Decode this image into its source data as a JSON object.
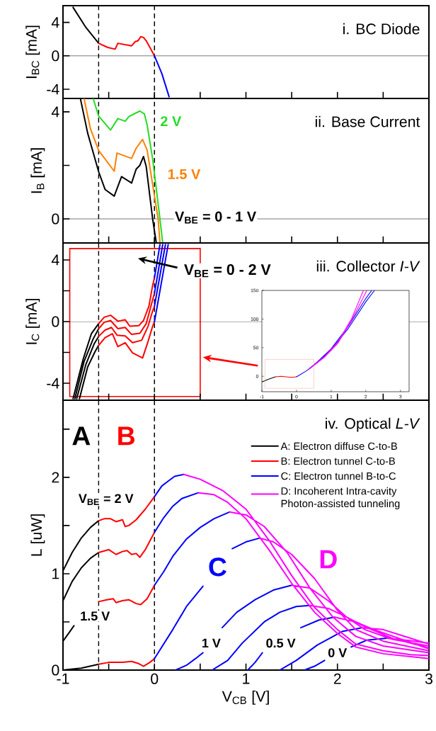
{
  "chart_data": [
    {
      "type": "line",
      "title": "i. BC Diode",
      "ylabel": "I$_{BC}$ [mA]",
      "xlim": [
        -1,
        3
      ],
      "ylim": [
        -5.1,
        6
      ],
      "xticks": [
        -1,
        {
          "value": -0.5,
          "label": null
        },
        0,
        {
          "value": 0.5,
          "label": null
        },
        1,
        {
          "value": 1.5,
          "label": null
        },
        2,
        {
          "value": 2.5,
          "label": null
        },
        3
      ],
      "yticks": [
        -4,
        0,
        4
      ],
      "tick_labels": "y",
      "ref_lines": [
        {
          "axis": "y",
          "value": 0
        },
        {
          "axis": "x",
          "value": -0.61,
          "line_style": "dashed"
        },
        {
          "axis": "x",
          "value": 0,
          "line_style": "dashed"
        }
      ],
      "series": [
        {
          "color": "#000000",
          "x": [
            -0.89,
            -0.75,
            -0.61
          ],
          "values": [
            5.8,
            3.4,
            1.5
          ]
        },
        {
          "color": "#ff0000",
          "x": [
            -0.61,
            -0.51,
            -0.43,
            -0.4,
            -0.25,
            -0.21,
            -0.18,
            -0.15,
            -0.12,
            -0.09,
            0
          ],
          "values": [
            1.5,
            1.0,
            0.8,
            1.5,
            1.2,
            1.7,
            1.8,
            2.3,
            2.2,
            1.8,
            0
          ]
        },
        {
          "color": "#0000ff",
          "x": [
            0,
            0.08,
            0.16
          ],
          "values": [
            0,
            -2.1,
            -4.9
          ]
        }
      ]
    },
    {
      "type": "line",
      "title": "ii. Base Current",
      "ylabel": "I$_{B}$ [mA]",
      "xlim": [
        -1,
        3
      ],
      "ylim": [
        -0.9,
        4.5
      ],
      "xticks": [
        -1,
        {
          "value": -0.5,
          "label": null
        },
        0,
        {
          "value": 0.5,
          "label": null
        },
        1,
        {
          "value": 1.5,
          "label": null
        },
        2,
        {
          "value": 2.5,
          "label": null
        },
        3
      ],
      "yticks": [
        0,
        {
          "value": 2,
          "label": null
        },
        4
      ],
      "tick_labels": "y",
      "ref_lines": [
        {
          "axis": "y",
          "value": 0
        },
        {
          "axis": "x",
          "value": -0.61,
          "line_style": "dashed"
        },
        {
          "axis": "x",
          "value": 0,
          "line_style": "dashed"
        }
      ],
      "series": [
        {
          "name": "2 V",
          "color": "#22dd22",
          "x": [
            -0.67,
            -0.61,
            -0.48,
            -0.4,
            -0.32,
            -0.28,
            -0.16,
            -0.11,
            -0.08,
            -0.02,
            0.06,
            0.09
          ],
          "values": [
            4.5,
            3.84,
            3.32,
            3.75,
            3.65,
            3.82,
            4.03,
            3.92,
            3.51,
            2.24,
            0,
            -0.9
          ]
        },
        {
          "name": "1.5 V",
          "color": "#ff8000",
          "x": [
            -0.77,
            -0.7,
            -0.61,
            -0.44,
            -0.41,
            -0.25,
            -0.2,
            -0.13,
            -0.08,
            0.04,
            0.06
          ],
          "values": [
            4.5,
            3.37,
            2.56,
            1.78,
            2.46,
            2.26,
            2.64,
            2.97,
            2.57,
            0,
            -0.9
          ]
        },
        {
          "name": "V$_{BE}$ = 0 - 1 V",
          "color": "#000000",
          "x": [
            -0.81,
            -0.73,
            -0.61,
            -0.54,
            -0.44,
            -0.36,
            -0.25,
            -0.2,
            -0.16,
            -0.12,
            -0.09,
            -0.02,
            0.02
          ],
          "values": [
            4.5,
            3.2,
            1.76,
            1.1,
            0.85,
            1.58,
            1.34,
            1.86,
            2.0,
            2.33,
            1.95,
            0,
            -0.9
          ]
        }
      ]
    },
    {
      "type": "line",
      "title": "iii. Collector *I-V*",
      "ylabel": "I$_{C}$ [mA]",
      "xlim": [
        -1,
        3
      ],
      "ylim": [
        -5.1,
        5.1
      ],
      "xticks": [
        -1,
        {
          "value": -0.5,
          "label": null
        },
        0,
        {
          "value": 0.5,
          "label": null
        },
        1,
        {
          "value": 1.5,
          "label": null
        },
        2,
        {
          "value": 2.5,
          "label": null
        },
        3
      ],
      "yticks": [
        -4,
        {
          "value": -2,
          "label": null
        },
        0,
        {
          "value": 2,
          "label": null
        },
        4
      ],
      "tick_labels": "y",
      "ref_lines": [
        {
          "axis": "y",
          "value": 0
        },
        {
          "axis": "x",
          "value": -0.61,
          "line_style": "dashed"
        },
        {
          "axis": "x",
          "value": 0,
          "line_style": "dashed"
        }
      ],
      "annotations": [
        "V$_{BE}$ = 0 - 2 V"
      ],
      "series": [
        {
          "color": "#000000",
          "x": [
            -0.89,
            -0.78,
            -0.69,
            -0.61,
            null,
            -0.87,
            -0.77,
            -0.67,
            -0.61,
            null,
            -0.85,
            -0.75,
            -0.66,
            -0.61,
            null,
            -0.82,
            -0.73,
            -0.65,
            -0.61
          ],
          "values": [
            -5.0,
            -2.45,
            -0.79,
            -0.13,
            null,
            -5.0,
            -2.6,
            -1.12,
            -0.46,
            null,
            -5.0,
            -2.78,
            -1.45,
            -0.96,
            null,
            -5.0,
            -2.94,
            -1.95,
            -1.54
          ]
        },
        {
          "color": "#ff0000",
          "x": [
            -0.61,
            -0.55,
            -0.48,
            -0.4,
            -0.32,
            -0.27,
            -0.17,
            -0.12,
            -0.06,
            -0.02,
            0,
            null,
            -0.61,
            -0.55,
            -0.48,
            -0.4,
            -0.32,
            -0.25,
            -0.16,
            -0.09,
            -0.03,
            0,
            null,
            -0.61,
            -0.54,
            -0.47,
            -0.41,
            -0.32,
            -0.24,
            -0.14,
            -0.07,
            -0.02,
            0,
            null,
            -0.61,
            -0.54,
            -0.46,
            -0.4,
            -0.32,
            -0.24,
            -0.13,
            -0.07,
            -0.02,
            0
          ],
          "values": [
            -0.13,
            0.28,
            0.41,
            0.03,
            0.12,
            -0.3,
            -0.26,
            0.07,
            1.02,
            2.35,
            2.84,
            null,
            -0.46,
            -0.05,
            0.07,
            -0.46,
            -0.38,
            -0.83,
            -0.76,
            -0.13,
            1.19,
            1.85,
            null,
            -0.96,
            -0.55,
            -0.38,
            -0.88,
            -0.93,
            -1.37,
            -1.21,
            -0.3,
            0.69,
            1.0,
            null,
            -1.54,
            -1.04,
            -0.79,
            -1.62,
            -1.37,
            -2.03,
            -2.36,
            -1.29,
            -0.3,
            0
          ]
        },
        {
          "color": "#0000ff",
          "x": [
            0,
            0.03,
            0.06,
            null,
            0,
            0.045,
            0.09,
            null,
            0,
            0.06,
            0.12,
            null,
            0,
            0.075,
            0.15
          ],
          "values": [
            2.84,
            3.9,
            5.0,
            null,
            1.85,
            3.4,
            5.0,
            null,
            1.0,
            3.0,
            5.0,
            null,
            0,
            2.5,
            5.0
          ]
        }
      ]
    },
    {
      "type": "line",
      "xlim": [
        -1,
        3.25
      ],
      "ylim": [
        -27,
        150
      ],
      "xticks": [
        -1,
        0,
        1,
        2,
        3
      ],
      "yticks": [
        0,
        50,
        100,
        150
      ],
      "series": [
        {
          "color": "#000000",
          "x": [
            -1,
            -0.8,
            -0.61
          ],
          "values": [
            -10,
            -5,
            -1
          ]
        },
        {
          "color": "#ff0000",
          "x": [
            -0.61,
            -0.45,
            -0.3,
            -0.15,
            0
          ],
          "values": [
            -1,
            0,
            -1,
            -2,
            -1
          ]
        },
        {
          "color": "#0000ff",
          "x": [
            0,
            0.3,
            0.6,
            1.0,
            1.5,
            2.0,
            2.25,
            null,
            0,
            0.3,
            0.6,
            1.0,
            1.5,
            2.0,
            2.17
          ],
          "values": [
            -1,
            10,
            24,
            46,
            84,
            130,
            150,
            null,
            -1,
            10,
            25,
            48,
            88,
            136,
            150
          ]
        },
        {
          "color": "#ff00ff",
          "x": [
            0.35,
            0.8,
            1.2,
            1.6,
            1.93,
            null,
            0.4,
            0.8,
            1.2,
            1.6,
            2.03
          ],
          "values": [
            12,
            34,
            60,
            102,
            150,
            null,
            14,
            33,
            58,
            99,
            150
          ]
        }
      ]
    },
    {
      "type": "line",
      "title": "iv. Optical *L-V*",
      "xlabel": "V$_{CB}$ [V]",
      "ylabel": "L [uW]",
      "xlim": [
        -1,
        3
      ],
      "ylim": [
        0,
        2.8
      ],
      "xticks": [
        -1,
        {
          "value": -0.5,
          "label": null
        },
        0,
        {
          "value": 0.5,
          "label": null
        },
        1,
        {
          "value": 1.5,
          "label": null
        },
        2,
        {
          "value": 2.5,
          "label": null
        },
        3
      ],
      "yticks": [
        0,
        {
          "value": 0.5,
          "label": null
        },
        1,
        {
          "value": 1.5,
          "label": null
        },
        2,
        {
          "value": 2.5,
          "label": null
        }
      ],
      "legend": "top right",
      "ref_lines": [
        {
          "axis": "x",
          "value": -0.61,
          "line_style": "dashed"
        },
        {
          "axis": "x",
          "value": 0,
          "line_style": "dashed"
        }
      ],
      "annotations": [
        "A",
        "B",
        "C",
        "D",
        "V$_{BE}$ = 2 V",
        "1.5 V",
        "1 V",
        "0.5 V",
        "0 V"
      ],
      "series": [
        {
          "name": "A: Electron diffuse C-to-B",
          "color": "#000000",
          "x": [
            -1,
            -0.9,
            -0.8,
            -0.7,
            -0.61,
            null,
            -1,
            -0.9,
            -0.8,
            -0.7,
            -0.61,
            null,
            -1,
            -0.94,
            -0.88,
            null,
            -1,
            -0.8,
            -0.61
          ],
          "values": [
            1.03,
            1.22,
            1.37,
            1.48,
            1.55,
            null,
            0.72,
            0.92,
            1.06,
            1.16,
            1.22,
            null,
            0.3,
            0.38,
            0.46,
            null,
            0,
            0.02,
            0.06
          ]
        },
        {
          "name": "B: Electron tunnel C-to-B",
          "color": "#ff0000",
          "x": [
            -0.61,
            -0.55,
            -0.48,
            -0.42,
            -0.35,
            -0.32,
            -0.28,
            -0.2,
            -0.1,
            0,
            null,
            -0.61,
            -0.5,
            -0.42,
            -0.35,
            -0.3,
            -0.25,
            -0.2,
            -0.16,
            -0.1,
            0,
            null,
            -0.61,
            -0.52,
            -0.45,
            -0.42,
            -0.35,
            -0.28,
            -0.2,
            -0.15,
            -0.08,
            0,
            null,
            -0.61,
            -0.5,
            -0.35,
            -0.25,
            -0.18,
            -0.12,
            -0.05,
            0
          ],
          "values": [
            1.55,
            1.57,
            1.57,
            1.54,
            1.56,
            1.49,
            1.5,
            1.56,
            1.67,
            1.8,
            null,
            1.22,
            1.25,
            1.2,
            1.23,
            1.24,
            1.2,
            1.21,
            1.17,
            1.25,
            1.43,
            null,
            0.71,
            0.73,
            0.74,
            0.7,
            0.72,
            0.73,
            0.69,
            0.68,
            0.74,
            0.88,
            null,
            0.06,
            0.08,
            0.08,
            0.09,
            0.07,
            0.04,
            0.08,
            0.12
          ]
        },
        {
          "name": "C: Electron tunnel B-to-C",
          "color": "#0000ff",
          "x": [
            0,
            0.08,
            0.15,
            0.22,
            0.32,
            null,
            0,
            0.1,
            0.2,
            0.3,
            0.48,
            null,
            0,
            0.1,
            0.2,
            0.35,
            0.5,
            0.65,
            0.82,
            null,
            0,
            0.2,
            0.35,
            0.53,
            null,
            0.85,
            1.0,
            1.15,
            null,
            0.23,
            0.35,
            0.45,
            0.53,
            null,
            0.74,
            0.9,
            1.1,
            1.3,
            1.5,
            null,
            0.63,
            0.8,
            0.96,
            1.2,
            1.37,
            1.55,
            1.7,
            null,
            1.02,
            1.1,
            1.18,
            null,
            1.6,
            1.8,
            1.97,
            null,
            1.37,
            1.55,
            1.78,
            2.05,
            2.27,
            null,
            1.64,
            1.75,
            1.86,
            null,
            2.15,
            2.32,
            2.54
          ],
          "values": [
            1.8,
            1.91,
            1.96,
            2.01,
            2.03,
            null,
            1.43,
            1.58,
            1.7,
            1.78,
            1.84,
            null,
            0.88,
            1.02,
            1.18,
            1.36,
            1.48,
            1.57,
            1.64,
            null,
            0.12,
            0.42,
            0.66,
            0.87,
            null,
            1.26,
            1.33,
            1.37,
            null,
            0,
            0.05,
            0.12,
            0.18,
            null,
            0.44,
            0.6,
            0.73,
            0.83,
            0.88,
            null,
            0,
            0.1,
            0.28,
            0.5,
            0.6,
            0.66,
            0.67,
            null,
            0,
            0.08,
            0.18,
            null,
            0.44,
            0.52,
            0.55,
            null,
            0,
            0.1,
            0.26,
            0.4,
            0.44,
            null,
            0,
            0.04,
            0.1,
            null,
            0.24,
            0.31,
            0.33
          ]
        },
        {
          "name": "D: Incoherent Intra-cavity Photon-assisted tunneling",
          "color": "#ff00ff",
          "x": [
            0.32,
            0.5,
            0.75,
            1.0,
            1.25,
            1.5,
            1.75,
            2.0,
            2.2,
            2.5,
            2.8,
            3.0,
            null,
            0.48,
            0.65,
            0.8,
            1.0,
            1.25,
            1.5,
            1.75,
            2.0,
            2.2,
            2.5,
            3.0,
            null,
            0.82,
            1.0,
            1.2,
            1.45,
            1.7,
            1.95,
            2.2,
            2.5,
            3.0,
            null,
            1.15,
            1.3,
            1.5,
            1.75,
            2.0,
            2.2,
            2.5,
            3.0,
            null,
            1.5,
            1.7,
            1.9,
            2.1,
            2.3,
            2.6,
            3.0,
            null,
            1.7,
            1.9,
            2.1,
            2.3,
            2.6,
            3.0,
            null,
            1.97,
            2.2,
            2.4,
            2.7,
            3.0,
            null,
            2.27,
            2.5,
            2.7,
            3.0,
            null,
            2.54,
            2.75,
            3.0
          ],
          "values": [
            2.03,
            1.98,
            1.86,
            1.67,
            1.35,
            0.98,
            0.65,
            0.42,
            0.27,
            0.2,
            0.16,
            0.15,
            null,
            1.84,
            1.82,
            1.74,
            1.57,
            1.25,
            0.9,
            0.6,
            0.38,
            0.24,
            0.17,
            0.12,
            null,
            1.64,
            1.61,
            1.49,
            1.22,
            0.85,
            0.55,
            0.35,
            0.25,
            0.18,
            null,
            1.37,
            1.33,
            1.2,
            0.95,
            0.62,
            0.42,
            0.3,
            0.2,
            null,
            0.88,
            0.85,
            0.72,
            0.55,
            0.42,
            0.32,
            0.25,
            null,
            0.67,
            0.64,
            0.55,
            0.45,
            0.33,
            0.23,
            null,
            0.55,
            0.5,
            0.42,
            0.32,
            0.22,
            null,
            0.44,
            0.42,
            0.36,
            0.27,
            null,
            0.33,
            0.31,
            0.28
          ]
        }
      ]
    }
  ]
}
